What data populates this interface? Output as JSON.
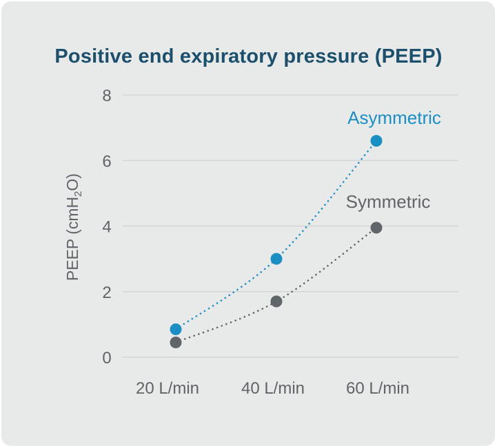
{
  "chart_data": {
    "type": "line",
    "title": "Positive end expiratory pressure (PEEP)",
    "ylabel": {
      "main": "PEEP (cmH",
      "subscript": "2",
      "end": "O)"
    },
    "xlabel": "",
    "categories": [
      "20 L/min",
      "40 L/min",
      "60 L/min"
    ],
    "y_ticks": [
      "0",
      "2",
      "4",
      "6",
      "8"
    ],
    "ylim": [
      0,
      8
    ],
    "grid": true,
    "legend": "inline labels at line ends",
    "series": [
      {
        "name": "Asymmetric",
        "values": [
          0.85,
          3.0,
          6.6
        ],
        "color": "#1b8fc3"
      },
      {
        "name": "Symmetric",
        "values": [
          0.45,
          1.7,
          3.95
        ],
        "color": "#606569"
      }
    ]
  }
}
